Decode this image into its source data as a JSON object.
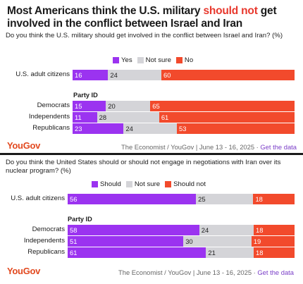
{
  "panel1": {
    "title_pre": "Most Americans think the U.S. military ",
    "title_hl": "should not",
    "title_post": " get involved in the conflict between Israel and Iran",
    "question": "Do you think the U.S. military should get involved in the conflict between Israel and Iran? (%)",
    "legend": [
      "Yes",
      "Not sure",
      "No"
    ],
    "party_id": "Party ID",
    "logo": "YouGov",
    "source": "The Economist / YouGov | June 13 - 16, 2025 · ",
    "link": "Get the data"
  },
  "panel2": {
    "question": "Do you think the United States should or should not engage in negotiations with Iran over its nuclear program? (%)",
    "legend": [
      "Should",
      "Not sure",
      "Should not"
    ],
    "party_id": "Party ID",
    "logo": "YouGov",
    "source": "The Economist / YouGov | June 13 - 16, 2025 · ",
    "link": "Get the data"
  },
  "colors": {
    "purple": "#9b33f0",
    "gray": "#d4d4d8",
    "red": "#f24a2c"
  },
  "chart_data": [
    {
      "type": "bar",
      "stacked": true,
      "orientation": "horizontal",
      "categories": [
        "U.S. adult citizens",
        "Democrats",
        "Independents",
        "Republicans"
      ],
      "series": [
        {
          "name": "Yes",
          "values": [
            16,
            15,
            11,
            23
          ]
        },
        {
          "name": "Not sure",
          "values": [
            24,
            20,
            28,
            24
          ]
        },
        {
          "name": "No",
          "values": [
            60,
            65,
            61,
            53
          ]
        }
      ]
    },
    {
      "type": "bar",
      "stacked": true,
      "orientation": "horizontal",
      "categories": [
        "U.S. adult citizens",
        "Democrats",
        "Independents",
        "Republicans"
      ],
      "series": [
        {
          "name": "Should",
          "values": [
            56,
            58,
            51,
            61
          ]
        },
        {
          "name": "Not sure",
          "values": [
            25,
            24,
            30,
            21
          ]
        },
        {
          "name": "Should not",
          "values": [
            18,
            18,
            19,
            18
          ]
        }
      ]
    }
  ]
}
